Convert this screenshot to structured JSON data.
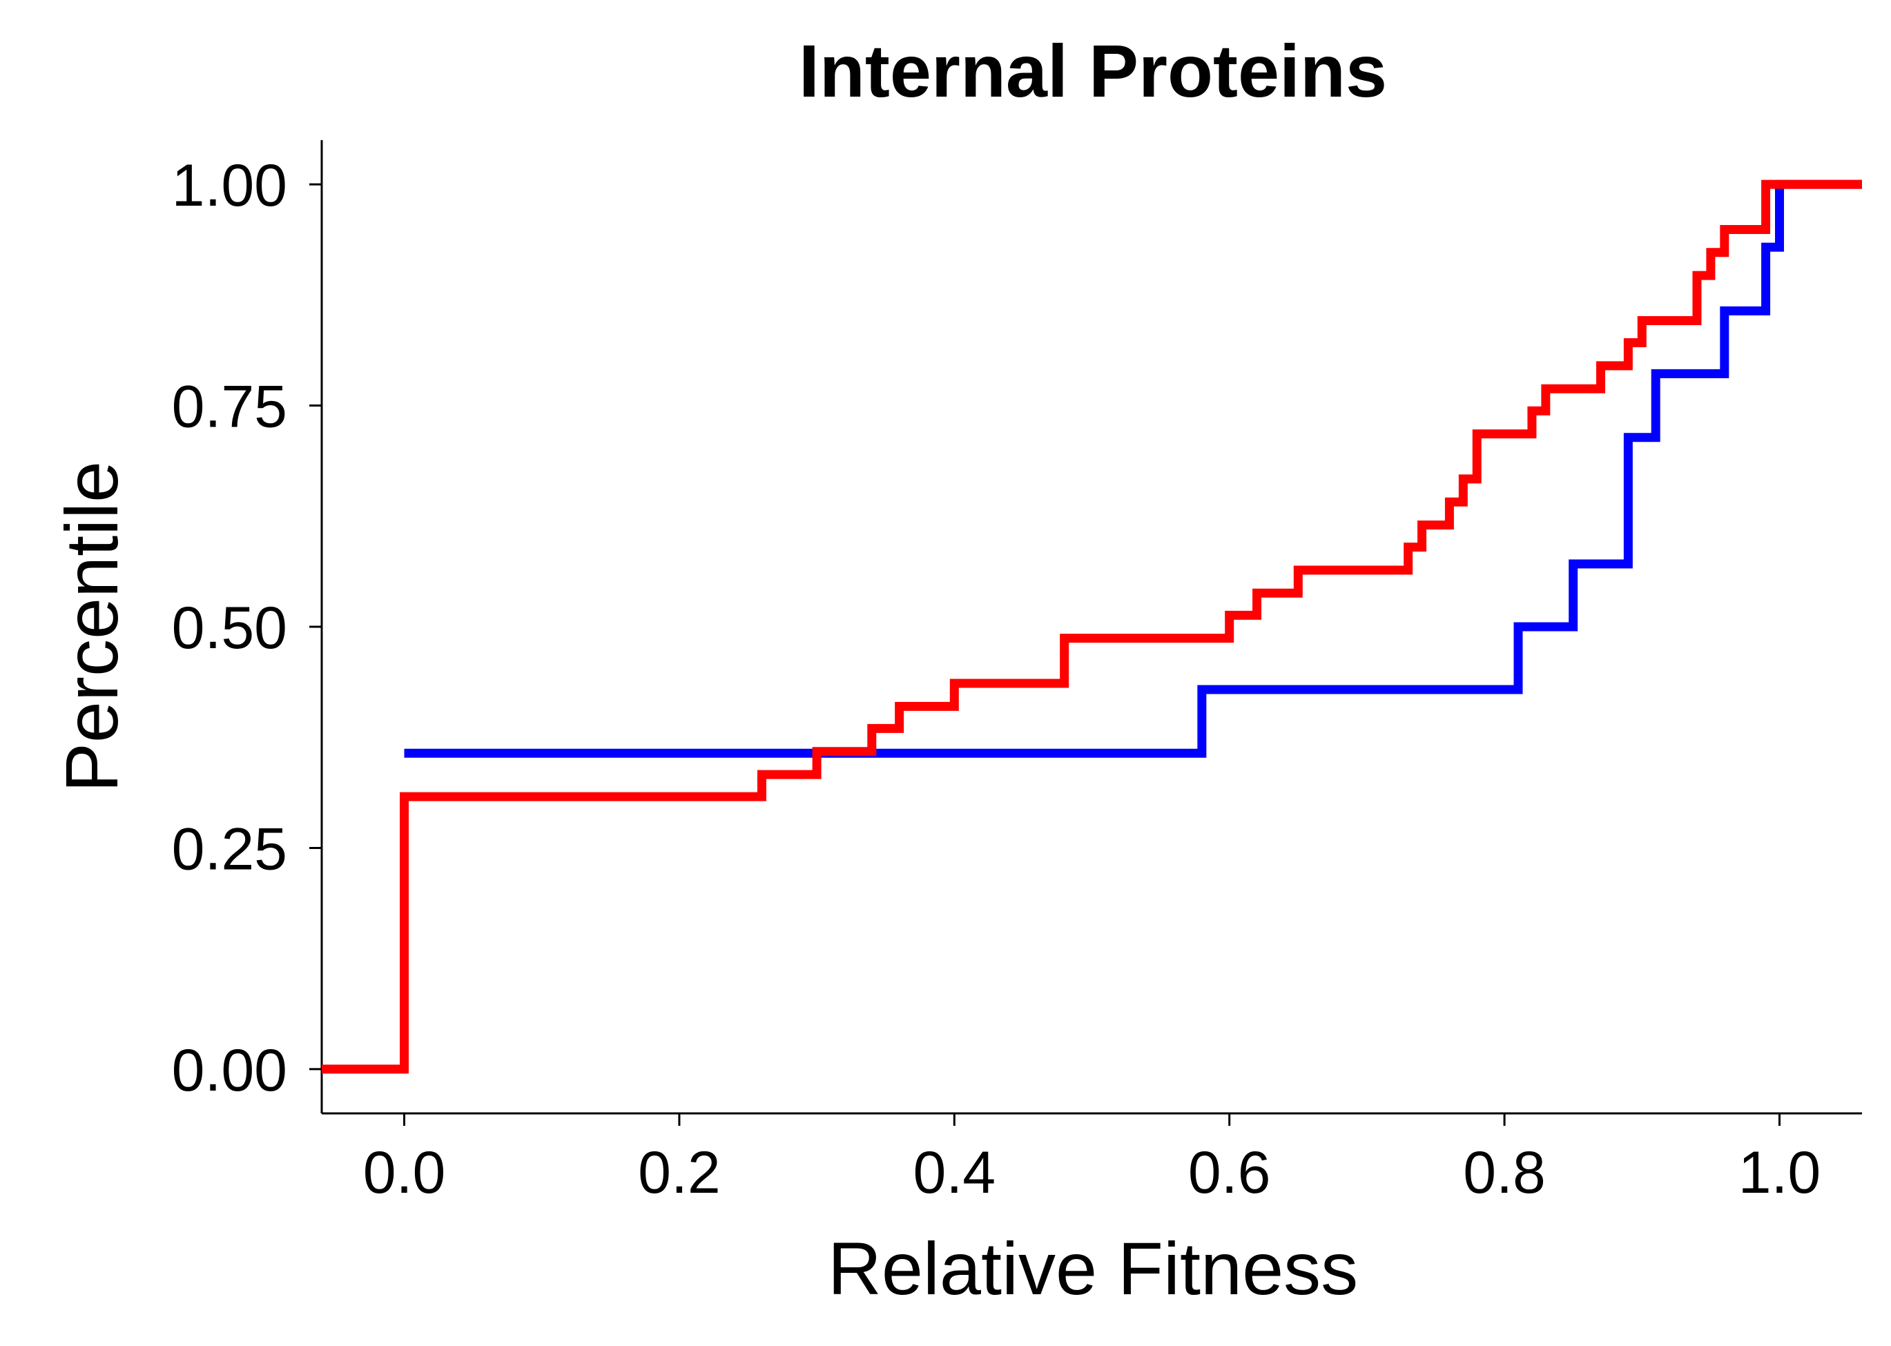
{
  "chart_data": {
    "type": "line",
    "step": true,
    "title": "Internal Proteins",
    "xlabel": "Relative Fitness",
    "ylabel": "Percentile",
    "xlim": [
      -0.06,
      1.06
    ],
    "ylim": [
      -0.05,
      1.05
    ],
    "x_ticks": [
      0.0,
      0.2,
      0.4,
      0.6,
      0.8,
      1.0
    ],
    "x_tick_labels": [
      "0.0",
      "0.2",
      "0.4",
      "0.6",
      "0.8",
      "1.0"
    ],
    "y_ticks": [
      0.0,
      0.25,
      0.5,
      0.75,
      1.0
    ],
    "y_tick_labels": [
      "0.00",
      "0.25",
      "0.50",
      "0.75",
      "1.00"
    ],
    "grid": false,
    "legend": "none",
    "series": [
      {
        "color": "#0000ff",
        "points": [
          [
            0.0,
            0.357
          ],
          [
            0.58,
            0.429
          ],
          [
            0.81,
            0.5
          ],
          [
            0.85,
            0.571
          ],
          [
            0.89,
            0.714
          ],
          [
            0.91,
            0.786
          ],
          [
            0.96,
            0.857
          ],
          [
            0.99,
            0.929
          ],
          [
            1.0,
            1.0
          ]
        ],
        "x_end": 1.06
      },
      {
        "color": "#ff0000",
        "points": [
          [
            -0.06,
            0.0
          ],
          [
            0.0,
            0.308
          ],
          [
            0.26,
            0.333
          ],
          [
            0.3,
            0.359
          ],
          [
            0.34,
            0.385
          ],
          [
            0.36,
            0.41
          ],
          [
            0.4,
            0.436
          ],
          [
            0.48,
            0.487
          ],
          [
            0.6,
            0.513
          ],
          [
            0.62,
            0.538
          ],
          [
            0.65,
            0.564
          ],
          [
            0.73,
            0.59
          ],
          [
            0.74,
            0.615
          ],
          [
            0.76,
            0.641
          ],
          [
            0.77,
            0.667
          ],
          [
            0.78,
            0.718
          ],
          [
            0.82,
            0.744
          ],
          [
            0.83,
            0.769
          ],
          [
            0.87,
            0.795
          ],
          [
            0.89,
            0.821
          ],
          [
            0.9,
            0.846
          ],
          [
            0.94,
            0.897
          ],
          [
            0.95,
            0.923
          ],
          [
            0.96,
            0.949
          ],
          [
            0.99,
            1.0
          ]
        ],
        "x_end": 1.06
      }
    ]
  }
}
